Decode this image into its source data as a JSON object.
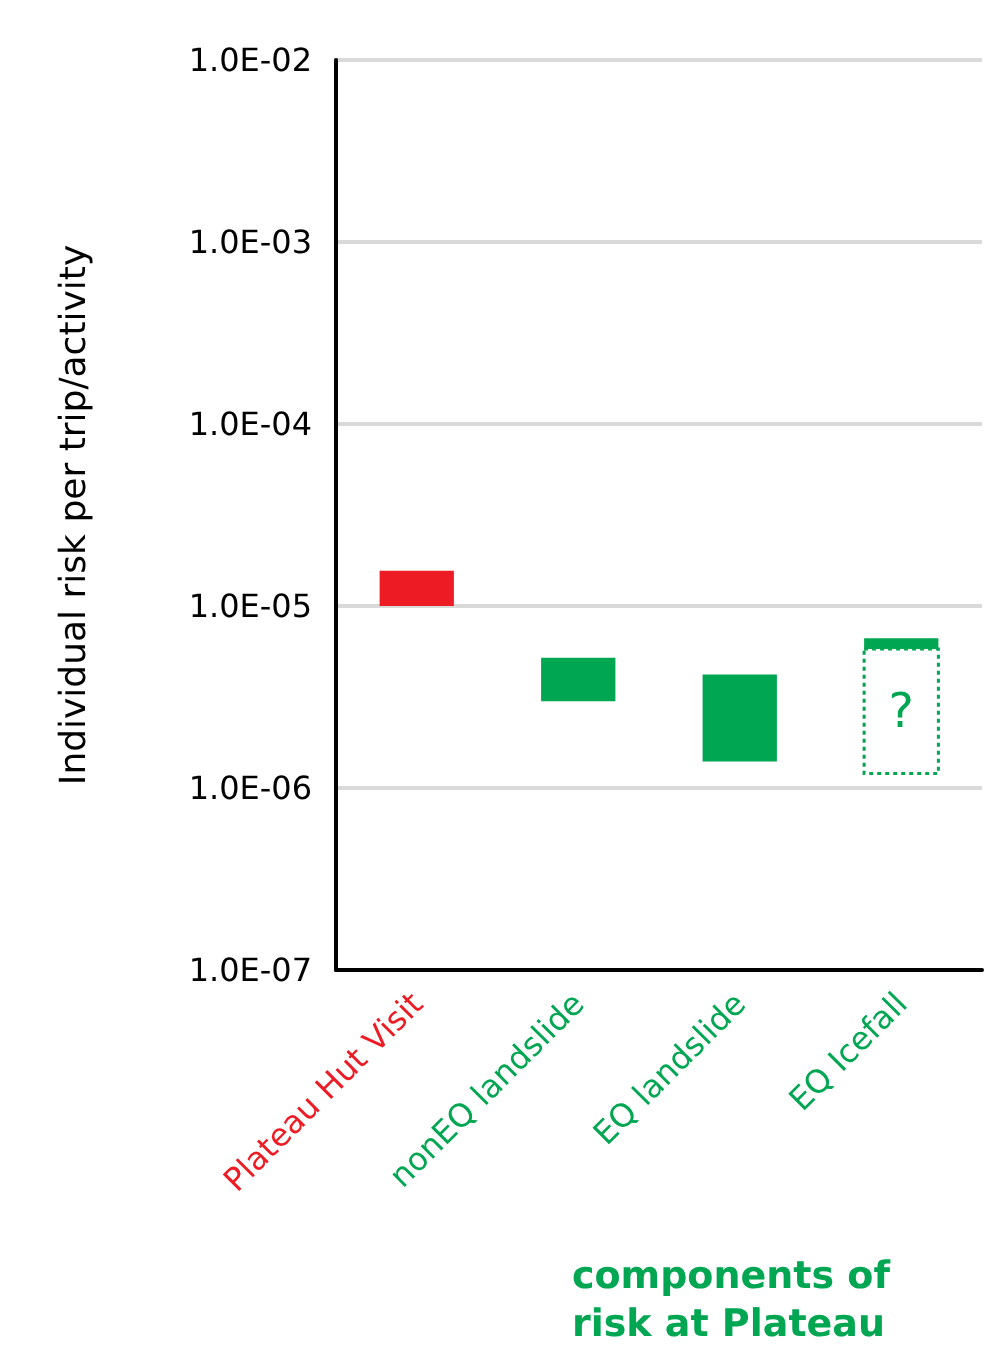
{
  "chart_data": {
    "type": "bar",
    "ylabel": "Individual risk per trip/activity",
    "xlabel": "components of\nrisk at Plateau",
    "categories": [
      "Plateau Hut Visit",
      "nonEQ landslide",
      "EQ landslide",
      "EQ Icefall"
    ],
    "log": true,
    "ylim": [
      1e-07,
      0.01
    ],
    "yticks": [
      {
        "value": 1e-07,
        "label": "1.0E-07"
      },
      {
        "value": 1e-06,
        "label": "1.0E-06"
      },
      {
        "value": 1e-05,
        "label": "1.0E-05"
      },
      {
        "value": 0.0001,
        "label": "1.0E-04"
      },
      {
        "value": 0.001,
        "label": "1.0E-03"
      },
      {
        "value": 0.01,
        "label": "1.0E-02"
      }
    ],
    "grid": "y",
    "series": [
      {
        "colors": [
          "#ed1c24",
          "#00a651",
          "#00a651",
          "#00a651"
        ],
        "base": [
          1e-05,
          3e-06,
          1.4e-06,
          5.8e-06
        ],
        "values": [
          5.6e-06,
          2.2e-06,
          2.8e-06,
          8.5e-07
        ]
      },
      {
        "color": "#00a651",
        "line_style": "dotted",
        "base": [
          null,
          null,
          null,
          1.2e-06
        ],
        "values": [
          null,
          null,
          null,
          4.6e-06
        ]
      }
    ],
    "annotations": [
      "?"
    ]
  }
}
